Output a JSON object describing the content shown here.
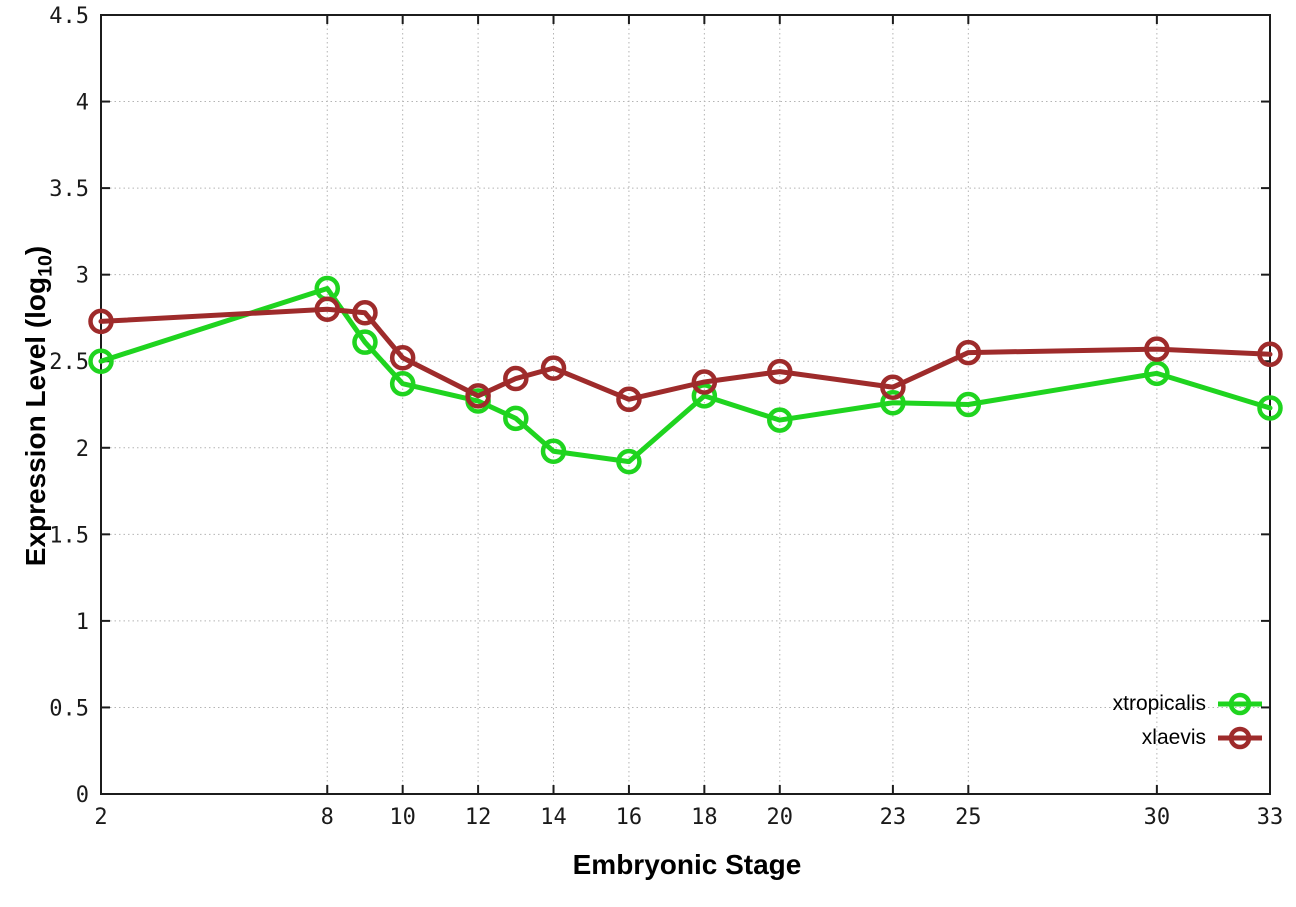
{
  "figure": {
    "background_color": "#ffffff",
    "axis_color": "#1c1c1c",
    "grid_color": "#b4b4b4",
    "tick_label_color": "#1a1a1a"
  },
  "labels": {
    "xlabel": "Embryonic Stage",
    "ylabel_text": "Expression Level (log",
    "ylabel_sub": "10",
    "ylabel_close": ")"
  },
  "chart_data": {
    "type": "line",
    "title": "",
    "xlabel": "Embryonic Stage",
    "ylabel": "Expression Level (log10)",
    "xlim": [
      2,
      33
    ],
    "ylim": [
      0,
      4.5
    ],
    "xticks": [
      2,
      8,
      10,
      12,
      14,
      16,
      18,
      20,
      23,
      25,
      30,
      33
    ],
    "xtick_labels": [
      "2",
      "8",
      "10",
      "12",
      "14",
      "16",
      "18",
      "20",
      "23",
      "25",
      "30",
      "33"
    ],
    "yticks": [
      0,
      0.5,
      1,
      1.5,
      2,
      2.5,
      3,
      3.5,
      4,
      4.5
    ],
    "ytick_labels": [
      "0",
      "0.5",
      "1",
      "1.5",
      "2",
      "2.5",
      "3",
      "3.5",
      "4",
      "4.5"
    ],
    "grid": true,
    "grid_style": "dotted",
    "legend_position": "inside bottom-right",
    "x": [
      2,
      8,
      9,
      10,
      12,
      13,
      14,
      16,
      18,
      20,
      23,
      25,
      30,
      33
    ],
    "series": [
      {
        "name": "xtropicalis",
        "color": "#1fd41f",
        "marker": "open-circle",
        "values": [
          2.5,
          2.92,
          2.61,
          2.37,
          2.27,
          2.17,
          1.98,
          1.92,
          2.3,
          2.16,
          2.26,
          2.25,
          2.43,
          2.23
        ]
      },
      {
        "name": "xlaevis",
        "color": "#9e2b2b",
        "marker": "open-circle",
        "values": [
          2.73,
          2.8,
          2.78,
          2.52,
          2.3,
          2.4,
          2.46,
          2.28,
          2.38,
          2.44,
          2.35,
          2.55,
          2.57,
          2.54
        ]
      }
    ]
  }
}
